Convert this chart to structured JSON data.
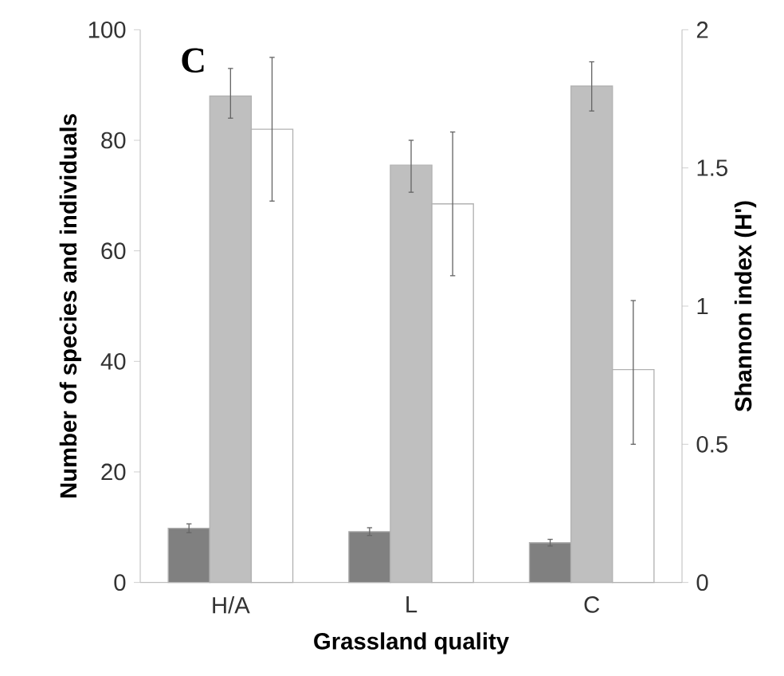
{
  "chart_data": {
    "type": "bar",
    "annotations": [
      "C"
    ],
    "xlabel": "Grassland quality",
    "ylabel": "Number of species and individuals",
    "y2label": "Shannon index (H')",
    "categories": [
      "H/A",
      "L",
      "C"
    ],
    "series": [
      {
        "color": "#808080",
        "values": [
          9.8,
          9.2,
          7.2
        ],
        "errors": [
          [
            9.0,
            10.6
          ],
          [
            8.5,
            9.9
          ],
          [
            6.6,
            7.8
          ]
        ]
      },
      {
        "color": "#bfbfbf",
        "values": [
          88,
          75.5,
          89.8
        ],
        "errors": [
          [
            84,
            93
          ],
          [
            70.6,
            80
          ],
          [
            85.3,
            94.2
          ]
        ]
      },
      {
        "color": "#ffffff",
        "axis": "y2",
        "values": [
          1.64,
          1.37,
          0.77
        ],
        "errors": [
          [
            1.38,
            1.9
          ],
          [
            1.11,
            1.63
          ],
          [
            0.5,
            1.02
          ]
        ]
      }
    ],
    "ylim": [
      0,
      100
    ],
    "yticks": [
      0,
      20,
      40,
      60,
      80,
      100
    ],
    "y2lim": [
      0,
      2
    ],
    "y2ticks": [
      0,
      0.5,
      1,
      1.5,
      2
    ]
  }
}
